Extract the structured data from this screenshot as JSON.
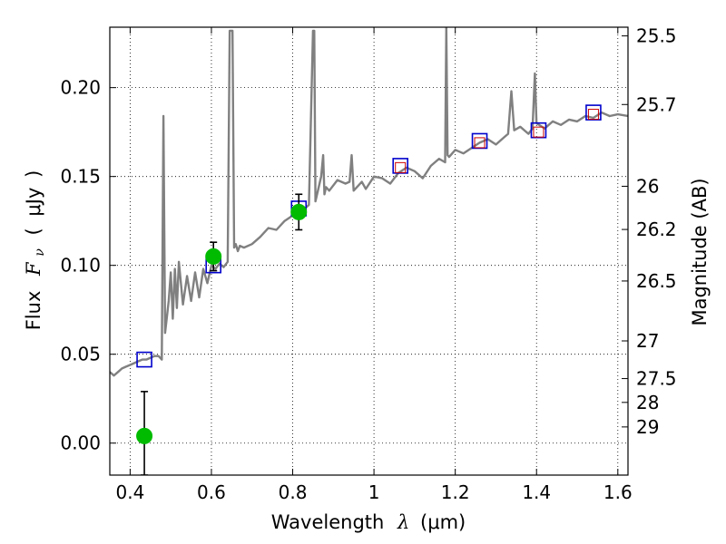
{
  "chart_data": {
    "type": "line",
    "title": "",
    "xlabel": "Wavelength",
    "xlabel_symbol": "λ",
    "xlabel_unit": "(μm)",
    "ylabel": "Flux",
    "ylabel_symbol": "F",
    "ylabel_sub": "ν",
    "ylabel_unit": "μJy",
    "ylabel_right": "Magnitude (AB)",
    "xlim": [
      0.35,
      1.625
    ],
    "ylim": [
      -0.018,
      0.234
    ],
    "grid": true,
    "grid_style": "dotted",
    "x_ticks": [
      0.4,
      0.6,
      0.8,
      1.0,
      1.2,
      1.4,
      1.6
    ],
    "x_tick_labels": [
      "0.4",
      "0.6",
      "0.8",
      "1",
      "1.2",
      "1.4",
      "1.6"
    ],
    "y_ticks": [
      0.0,
      0.05,
      0.1,
      0.15,
      0.2
    ],
    "y_tick_labels": [
      "0.00",
      "0.05",
      "0.10",
      "0.15",
      "0.20"
    ],
    "right_ticks": [
      {
        "label": "25.5",
        "flux": 0.2291
      },
      {
        "label": "25.7",
        "flux": 0.1905
      },
      {
        "label": "26",
        "flux": 0.1445
      },
      {
        "label": "26.2",
        "flux": 0.1202
      },
      {
        "label": "26.5",
        "flux": 0.0912
      },
      {
        "label": "27",
        "flux": 0.0575
      },
      {
        "label": "27.5",
        "flux": 0.0363
      },
      {
        "label": "28",
        "flux": 0.0229
      },
      {
        "label": "29",
        "flux": 0.0091
      }
    ],
    "colors": {
      "model": "#808080",
      "photometry": "#00bb00",
      "model_box": "#0000cc",
      "model_box_inner": "#cc0000",
      "errorbar": "#000000"
    },
    "series": [
      {
        "style": "line",
        "x": [
          0.35,
          0.36,
          0.37,
          0.38,
          0.39,
          0.4,
          0.41,
          0.42,
          0.43,
          0.44,
          0.45,
          0.46,
          0.47,
          0.478,
          0.482,
          0.486,
          0.49,
          0.495,
          0.5,
          0.505,
          0.51,
          0.515,
          0.52,
          0.53,
          0.54,
          0.55,
          0.56,
          0.57,
          0.58,
          0.59,
          0.6,
          0.61,
          0.62,
          0.63,
          0.64,
          0.645,
          0.652,
          0.656,
          0.66,
          0.665,
          0.67,
          0.68,
          0.7,
          0.72,
          0.74,
          0.76,
          0.78,
          0.8,
          0.82,
          0.84,
          0.85,
          0.853,
          0.856,
          0.86,
          0.87,
          0.875,
          0.878,
          0.882,
          0.89,
          0.91,
          0.93,
          0.94,
          0.945,
          0.95,
          0.97,
          0.98,
          1.0,
          1.02,
          1.04,
          1.06,
          1.08,
          1.1,
          1.12,
          1.14,
          1.16,
          1.175,
          1.178,
          1.181,
          1.185,
          1.2,
          1.22,
          1.24,
          1.26,
          1.28,
          1.3,
          1.32,
          1.33,
          1.338,
          1.345,
          1.36,
          1.38,
          1.39,
          1.396,
          1.4,
          1.42,
          1.44,
          1.46,
          1.48,
          1.5,
          1.52,
          1.54,
          1.56,
          1.58,
          1.6,
          1.625
        ],
        "y": [
          0.04,
          0.038,
          0.04,
          0.042,
          0.043,
          0.044,
          0.045,
          0.046,
          0.047,
          0.047,
          0.048,
          0.049,
          0.049,
          0.047,
          0.184,
          0.062,
          0.07,
          0.08,
          0.096,
          0.07,
          0.098,
          0.076,
          0.102,
          0.078,
          0.094,
          0.08,
          0.096,
          0.082,
          0.098,
          0.09,
          0.1,
          0.098,
          0.101,
          0.099,
          0.102,
          0.232,
          0.232,
          0.11,
          0.112,
          0.108,
          0.111,
          0.11,
          0.112,
          0.116,
          0.121,
          0.12,
          0.125,
          0.128,
          0.13,
          0.134,
          0.232,
          0.232,
          0.136,
          0.14,
          0.15,
          0.162,
          0.14,
          0.144,
          0.142,
          0.148,
          0.146,
          0.147,
          0.162,
          0.142,
          0.147,
          0.143,
          0.15,
          0.149,
          0.146,
          0.152,
          0.155,
          0.153,
          0.149,
          0.156,
          0.16,
          0.158,
          0.234,
          0.162,
          0.161,
          0.165,
          0.163,
          0.166,
          0.169,
          0.171,
          0.168,
          0.172,
          0.174,
          0.198,
          0.176,
          0.178,
          0.174,
          0.177,
          0.208,
          0.18,
          0.177,
          0.181,
          0.179,
          0.182,
          0.181,
          0.184,
          0.183,
          0.186,
          0.184,
          0.185,
          0.184
        ]
      },
      {
        "style": "open-square",
        "x": [
          0.435,
          0.605,
          0.815,
          1.065,
          1.26,
          1.405,
          1.54
        ],
        "y": [
          0.047,
          0.1,
          0.132,
          0.156,
          0.17,
          0.176,
          0.186
        ]
      },
      {
        "style": "inner-square",
        "x": [
          1.065,
          1.26,
          1.405,
          1.54
        ],
        "y": [
          0.155,
          0.169,
          0.175,
          0.185
        ]
      },
      {
        "style": "point-errorbar",
        "x": [
          0.435,
          0.605,
          0.815
        ],
        "y": [
          0.004,
          0.105,
          0.13
        ],
        "yerr_low": [
          -0.018,
          0.097,
          0.12
        ],
        "yerr_high": [
          0.029,
          0.113,
          0.14
        ]
      }
    ]
  }
}
